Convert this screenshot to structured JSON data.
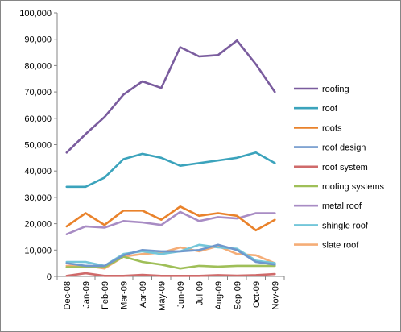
{
  "chart_data": {
    "type": "line",
    "title": "",
    "xlabel": "",
    "ylabel": "",
    "categories": [
      "Dec-08",
      "Jan-09",
      "Feb-09",
      "Mar-09",
      "Apr-09",
      "May-09",
      "Jun-09",
      "Jul-09",
      "Aug-09",
      "Sep-09",
      "Oct-09",
      "Nov-09"
    ],
    "ylim": [
      0,
      100000
    ],
    "yticks": [
      "0",
      "10,000",
      "20,000",
      "30,000",
      "40,000",
      "50,000",
      "60,000",
      "70,000",
      "80,000",
      "90,000",
      "100,000"
    ],
    "grid": false,
    "legend_position": "right",
    "series": [
      {
        "name": "roofing",
        "color": "#7a5c9e",
        "values": [
          47000,
          54000,
          60500,
          69000,
          74000,
          71500,
          87000,
          83500,
          84000,
          89500,
          80500,
          70000
        ]
      },
      {
        "name": "roof",
        "color": "#3ba3bc",
        "values": [
          34000,
          34000,
          37500,
          44500,
          46500,
          45000,
          42000,
          43000,
          44000,
          45000,
          47000,
          43000
        ]
      },
      {
        "name": "roofs",
        "color": "#e9822b",
        "values": [
          19000,
          24000,
          19500,
          25000,
          25000,
          21500,
          26500,
          23000,
          24000,
          23000,
          17500,
          21500
        ]
      },
      {
        "name": "roof design",
        "color": "#6f97cc",
        "values": [
          5000,
          4000,
          4000,
          8000,
          10000,
          9500,
          9500,
          10000,
          12000,
          10000,
          5500,
          4500
        ]
      },
      {
        "name": "roof system",
        "color": "#cf6a6a",
        "values": [
          200,
          1200,
          200,
          200,
          600,
          200,
          200,
          200,
          500,
          300,
          500,
          900
        ]
      },
      {
        "name": "roofing systems",
        "color": "#9fbf58",
        "values": [
          3500,
          3500,
          3500,
          7500,
          5500,
          4500,
          3000,
          4000,
          3700,
          4000,
          4000,
          4000
        ]
      },
      {
        "name": "metal roof",
        "color": "#a88cc4",
        "values": [
          16000,
          19000,
          18500,
          21000,
          20500,
          19500,
          24500,
          21000,
          22500,
          22000,
          24000,
          24000
        ]
      },
      {
        "name": "shingle roof",
        "color": "#73c6d9",
        "values": [
          5500,
          5500,
          4000,
          8500,
          9500,
          8500,
          9500,
          12000,
          11000,
          10500,
          6000,
          5000
        ]
      },
      {
        "name": "slate roof",
        "color": "#f5ad77",
        "values": [
          4000,
          4000,
          3000,
          7500,
          8500,
          9000,
          11000,
          9500,
          11500,
          8500,
          8000,
          5000
        ]
      }
    ]
  }
}
